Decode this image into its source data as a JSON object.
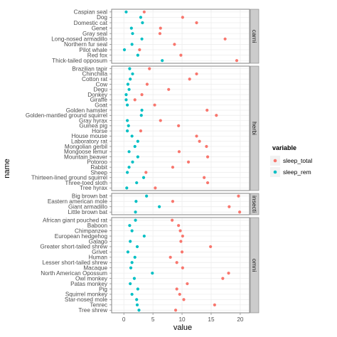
{
  "chart_data": {
    "type": "scatter",
    "xlabel": "value",
    "ylabel": "name",
    "xlim": [
      -2.1,
      21.6
    ],
    "x_ticks": [
      0,
      5,
      10,
      15,
      20
    ],
    "grid": true,
    "legend": {
      "title": "variable",
      "position": "right",
      "entries": [
        {
          "name": "sleep_total",
          "color": "#F8766D"
        },
        {
          "name": "sleep_rem",
          "color": "#00BFC4"
        }
      ]
    },
    "facets": [
      {
        "label": "carni",
        "rows": [
          {
            "name": "Caspian seal",
            "sleep_total": 3.5,
            "sleep_rem": 0.4
          },
          {
            "name": "Dog",
            "sleep_total": 10.1,
            "sleep_rem": 2.9
          },
          {
            "name": "Domestic cat",
            "sleep_total": 12.5,
            "sleep_rem": 3.2
          },
          {
            "name": "Genet",
            "sleep_total": 6.3,
            "sleep_rem": 1.3
          },
          {
            "name": "Gray seal",
            "sleep_total": 6.2,
            "sleep_rem": 1.5
          },
          {
            "name": "Long-nosed armadillo",
            "sleep_total": 17.4,
            "sleep_rem": 3.1
          },
          {
            "name": "Northern fur seal",
            "sleep_total": 8.7,
            "sleep_rem": 1.4
          },
          {
            "name": "Pilot whale",
            "sleep_total": 2.7,
            "sleep_rem": 0.1
          },
          {
            "name": "Red fox",
            "sleep_total": 9.8,
            "sleep_rem": 2.4
          },
          {
            "name": "Thick-tailed opposum",
            "sleep_total": 19.4,
            "sleep_rem": 6.6
          }
        ]
      },
      {
        "label": "herbi",
        "rows": [
          {
            "name": "Brazilian tapir",
            "sleep_total": 4.4,
            "sleep_rem": 1.0
          },
          {
            "name": "Chinchilla",
            "sleep_total": 12.5,
            "sleep_rem": 1.5
          },
          {
            "name": "Cotton rat",
            "sleep_total": 11.3,
            "sleep_rem": 1.1
          },
          {
            "name": "Cow",
            "sleep_total": 4.0,
            "sleep_rem": 0.7
          },
          {
            "name": "Degu",
            "sleep_total": 7.7,
            "sleep_rem": 0.9
          },
          {
            "name": "Donkey",
            "sleep_total": 3.1,
            "sleep_rem": 0.4
          },
          {
            "name": "Giraffe",
            "sleep_total": 1.9,
            "sleep_rem": 0.4
          },
          {
            "name": "Goat",
            "sleep_total": 5.3,
            "sleep_rem": 0.6
          },
          {
            "name": "Golden hamster",
            "sleep_total": 14.3,
            "sleep_rem": 3.1
          },
          {
            "name": "Golden-mantled ground squirrel",
            "sleep_total": 15.9,
            "sleep_rem": 3.0
          },
          {
            "name": "Gray hyrax",
            "sleep_total": 6.3,
            "sleep_rem": 0.6
          },
          {
            "name": "Guinea pig",
            "sleep_total": 9.4,
            "sleep_rem": 0.8
          },
          {
            "name": "Horse",
            "sleep_total": 2.9,
            "sleep_rem": 0.6
          },
          {
            "name": "House mouse",
            "sleep_total": 12.5,
            "sleep_rem": 1.4
          },
          {
            "name": "Laboratory rat",
            "sleep_total": 13.0,
            "sleep_rem": 2.4
          },
          {
            "name": "Mongolian gerbil",
            "sleep_total": 14.2,
            "sleep_rem": 1.9
          },
          {
            "name": "Mongoose lemur",
            "sleep_total": 9.5,
            "sleep_rem": 0.9
          },
          {
            "name": "Mountain beaver",
            "sleep_total": 14.4,
            "sleep_rem": 2.4
          },
          {
            "name": "Potoroo",
            "sleep_total": 11.1,
            "sleep_rem": 1.5
          },
          {
            "name": "Rabbit",
            "sleep_total": 8.4,
            "sleep_rem": 0.9
          },
          {
            "name": "Sheep",
            "sleep_total": 3.8,
            "sleep_rem": 0.6
          },
          {
            "name": "Thirteen-lined ground squirrel",
            "sleep_total": 13.8,
            "sleep_rem": 3.4
          },
          {
            "name": "Three-toed sloth",
            "sleep_total": 14.4,
            "sleep_rem": 2.2
          },
          {
            "name": "Tree hyrax",
            "sleep_total": 5.4,
            "sleep_rem": 0.5
          }
        ]
      },
      {
        "label": "insecti",
        "rows": [
          {
            "name": "Big brown bat",
            "sleep_total": 19.7,
            "sleep_rem": 3.9
          },
          {
            "name": "Eastern american mole",
            "sleep_total": 8.4,
            "sleep_rem": 2.1
          },
          {
            "name": "Giant armadillo",
            "sleep_total": 18.1,
            "sleep_rem": 6.1
          },
          {
            "name": "Little brown bat",
            "sleep_total": 19.9,
            "sleep_rem": 2.0
          }
        ]
      },
      {
        "label": "omni",
        "rows": [
          {
            "name": "African giant pouched rat",
            "sleep_total": 8.3,
            "sleep_rem": 2.0
          },
          {
            "name": "Baboon",
            "sleep_total": 9.4,
            "sleep_rem": 1.0
          },
          {
            "name": "Chimpanzee",
            "sleep_total": 9.7,
            "sleep_rem": 1.4
          },
          {
            "name": "European hedgehog",
            "sleep_total": 10.1,
            "sleep_rem": 3.5
          },
          {
            "name": "Galago",
            "sleep_total": 9.8,
            "sleep_rem": 1.1
          },
          {
            "name": "Greater short-tailed shrew",
            "sleep_total": 14.9,
            "sleep_rem": 2.3
          },
          {
            "name": "Grivet",
            "sleep_total": 10.0,
            "sleep_rem": 0.7
          },
          {
            "name": "Human",
            "sleep_total": 8.0,
            "sleep_rem": 1.9
          },
          {
            "name": "Lesser short-tailed shrew",
            "sleep_total": 9.1,
            "sleep_rem": 1.4
          },
          {
            "name": "Macaque",
            "sleep_total": 10.1,
            "sleep_rem": 1.2
          },
          {
            "name": "North American Opossum",
            "sleep_total": 18.0,
            "sleep_rem": 4.9
          },
          {
            "name": "Owl monkey",
            "sleep_total": 17.0,
            "sleep_rem": 1.8
          },
          {
            "name": "Patas monkey",
            "sleep_total": 10.9,
            "sleep_rem": 1.1
          },
          {
            "name": "Pig",
            "sleep_total": 9.1,
            "sleep_rem": 2.4
          },
          {
            "name": "Squirrel monkey",
            "sleep_total": 9.6,
            "sleep_rem": 1.4
          },
          {
            "name": "Star-nosed mole",
            "sleep_total": 10.3,
            "sleep_rem": 2.2
          },
          {
            "name": "Tenrec",
            "sleep_total": 15.6,
            "sleep_rem": 2.3
          },
          {
            "name": "Tree shrew",
            "sleep_total": 8.9,
            "sleep_rem": 2.6
          }
        ]
      }
    ]
  }
}
